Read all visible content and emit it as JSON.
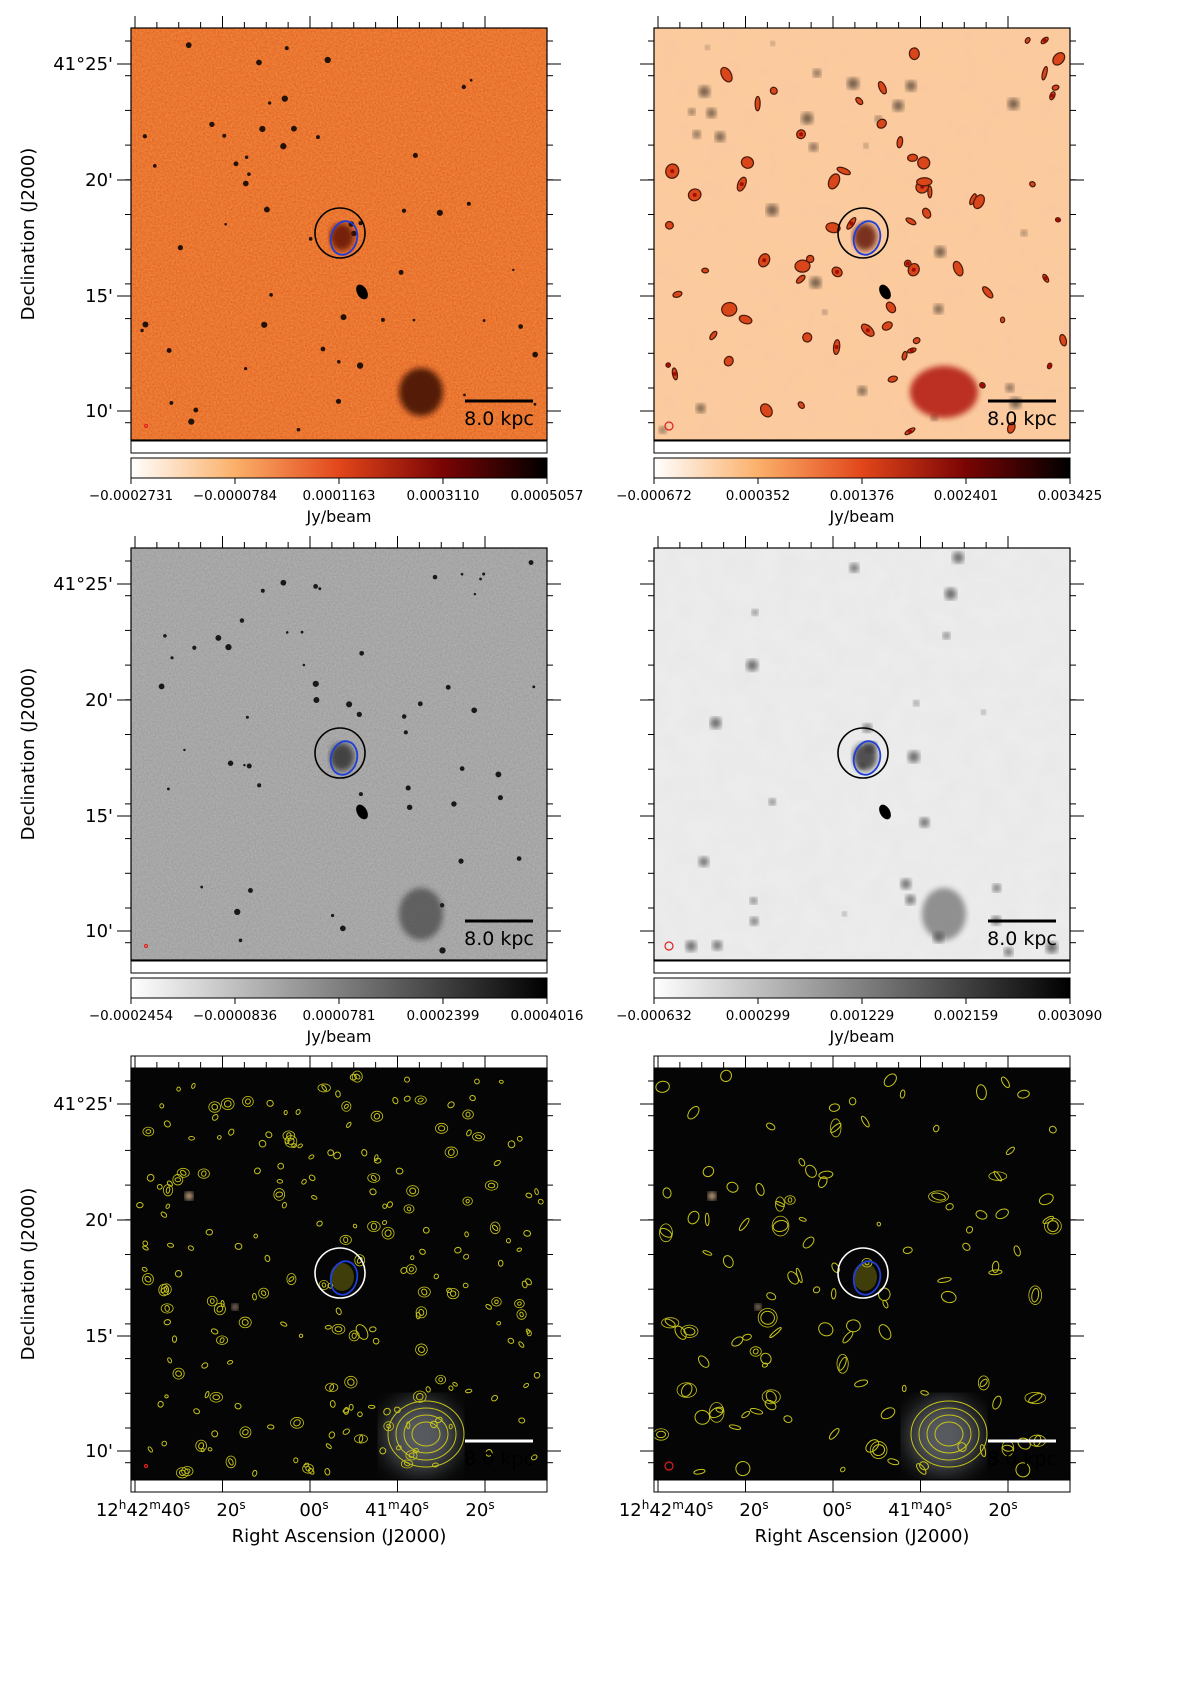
{
  "figure": {
    "dec_axis_label": "Declination (J2000)",
    "ra_axis_label": "Right Ascension (J2000)",
    "dec_ticks": [
      "41°25'",
      "20'",
      "15'",
      "10'"
    ],
    "ra_ticks": [
      {
        "h": "12",
        "m": "42",
        "s": "40"
      },
      {
        "s": "20"
      },
      {
        "s": "00"
      },
      {
        "m": "41",
        "s": "40"
      },
      {
        "s": "20"
      }
    ],
    "scale_bar_label": "8.0 kpc",
    "colorbar_unit": "Jy/beam",
    "colorbars": [
      {
        "ticks": [
          "−0.0002731",
          "−0.0000784",
          "0.0001163",
          "0.0003110",
          "0.0005057"
        ],
        "cmap": "hot"
      },
      {
        "ticks": [
          "−0.000672",
          "0.000352",
          "0.001376",
          "0.002401",
          "0.003425"
        ],
        "cmap": "hot"
      },
      {
        "ticks": [
          "−0.0002454",
          "−0.0000836",
          "0.0000781",
          "0.0002399",
          "0.0004016"
        ],
        "cmap": "gray"
      },
      {
        "ticks": [
          "−0.000632",
          "0.000299",
          "0.001229",
          "0.002159",
          "0.003090"
        ],
        "cmap": "gray"
      }
    ],
    "panel_styles": [
      "hot-hires",
      "hot-lowres",
      "gray-hires",
      "gray-lowres",
      "optical-hires",
      "optical-lowres"
    ],
    "colors": {
      "hot_low": "#fff4e8",
      "hot_mid": "#f07b2d",
      "hot_high": "#8b0a00",
      "contour_yellow": "#c6c41a",
      "ellipse_blue": "#1f3fd8",
      "beam_red": "#e02020"
    }
  }
}
